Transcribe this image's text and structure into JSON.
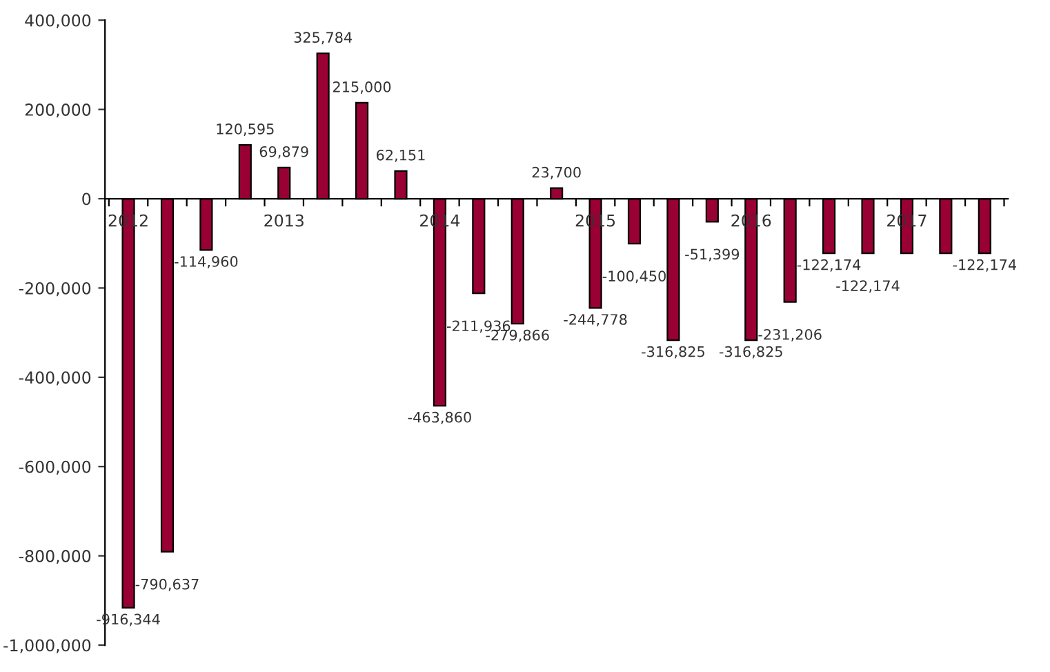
{
  "chart_data": {
    "type": "bar",
    "categories": [
      "2012",
      null,
      null,
      null,
      "2013",
      null,
      null,
      null,
      "2014",
      null,
      null,
      null,
      "2015",
      null,
      null,
      null,
      "2016",
      null,
      null,
      null,
      "2017",
      null,
      null
    ],
    "values": [
      -916344,
      -790637,
      -114960,
      120595,
      69879,
      325784,
      215000,
      62151,
      -463860,
      -211936,
      -279866,
      23700,
      -244778,
      -100450,
      -316825,
      -51399,
      -316825,
      -231206,
      -122174,
      -122174,
      -122174,
      -122174,
      -122174
    ],
    "value_labels": [
      "-916,344",
      "-790,637",
      "-114,960",
      "120,595",
      "69,879",
      "325,784",
      "215,000",
      "62,151",
      "-463,860",
      "-211,936",
      "-279,866",
      "23,700",
      "-244,778",
      "-100,450",
      "-316,825",
      "-51,399",
      "-316,825",
      "-231,206",
      "-122,174",
      "-122,174",
      null,
      null,
      "-122,174"
    ],
    "color": "#990033",
    "ylim": [
      -1000000,
      400000
    ],
    "yticks": [
      {
        "value": -1000000,
        "label": "-1,000,000"
      },
      {
        "value": -800000,
        "label": "-800,000"
      },
      {
        "value": -600000,
        "label": "-600,000"
      },
      {
        "value": -400000,
        "label": "-400,000"
      },
      {
        "value": -200000,
        "label": "-200,000"
      },
      0,
      {
        "value": 200000,
        "label": "200,000"
      },
      {
        "value": 400000,
        "label": "400,000"
      }
    ],
    "grid": false,
    "legend": false
  }
}
